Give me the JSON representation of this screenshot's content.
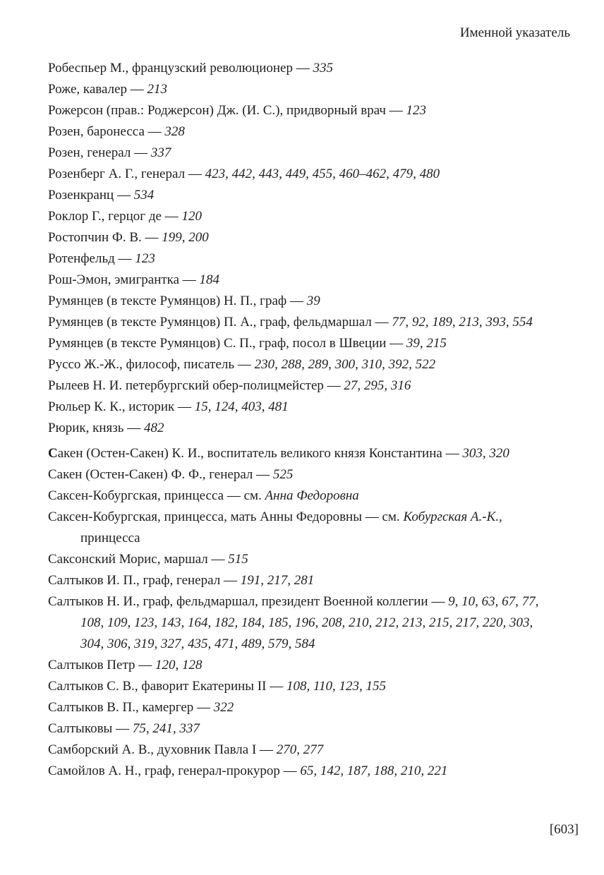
{
  "page": {
    "header": "Именной указатель",
    "footer": "[603]",
    "text_color": "#1f1f1f",
    "background_color": "#ffffff"
  },
  "index": {
    "entries": [
      {
        "runs": [
          {
            "t": "Робеспьер М., французский революционер — ",
            "s": "r"
          },
          {
            "t": "335",
            "s": "i"
          }
        ]
      },
      {
        "runs": [
          {
            "t": "Роже, кавалер — ",
            "s": "r"
          },
          {
            "t": "213",
            "s": "i"
          }
        ]
      },
      {
        "runs": [
          {
            "t": "Рожерсон (прав.: Роджерсон) Дж. (И. С.), придворный врач — ",
            "s": "r"
          },
          {
            "t": "123",
            "s": "i"
          }
        ]
      },
      {
        "runs": [
          {
            "t": "Розен, баронесса — ",
            "s": "r"
          },
          {
            "t": "328",
            "s": "i"
          }
        ]
      },
      {
        "runs": [
          {
            "t": "Розен, генерал — ",
            "s": "r"
          },
          {
            "t": "337",
            "s": "i"
          }
        ]
      },
      {
        "runs": [
          {
            "t": "Розенберг А. Г., генерал — ",
            "s": "r"
          },
          {
            "t": "423, 442, 443, 449, 455, 460–462, 479, 480",
            "s": "i"
          }
        ]
      },
      {
        "runs": [
          {
            "t": "Розенкранц — ",
            "s": "r"
          },
          {
            "t": "534",
            "s": "i"
          }
        ]
      },
      {
        "runs": [
          {
            "t": "Роклор Г., герцог де — ",
            "s": "r"
          },
          {
            "t": "120",
            "s": "i"
          }
        ]
      },
      {
        "runs": [
          {
            "t": "Ростопчин Ф. В. — ",
            "s": "r"
          },
          {
            "t": "199, 200",
            "s": "i"
          }
        ]
      },
      {
        "runs": [
          {
            "t": "Ротенфельд — ",
            "s": "r"
          },
          {
            "t": "123",
            "s": "i"
          }
        ]
      },
      {
        "runs": [
          {
            "t": "Рош-Эмон, эмигрантка — ",
            "s": "r"
          },
          {
            "t": "184",
            "s": "i"
          }
        ]
      },
      {
        "runs": [
          {
            "t": "Румянцев (в тексте Румянцов) Н. П., граф — ",
            "s": "r"
          },
          {
            "t": "39",
            "s": "i"
          }
        ]
      },
      {
        "runs": [
          {
            "t": "Румянцев (в тексте Румянцов) П. А., граф, фельдмаршал — ",
            "s": "r"
          },
          {
            "t": "77, 92, 189, 213, 393, 554",
            "s": "i"
          }
        ]
      },
      {
        "runs": [
          {
            "t": "Румянцев (в тексте Румянцов) С. П., граф, посол в Швеции — ",
            "s": "r"
          },
          {
            "t": "39, 215",
            "s": "i"
          }
        ]
      },
      {
        "runs": [
          {
            "t": "Руссо Ж.-Ж., философ, писатель — ",
            "s": "r"
          },
          {
            "t": "230, 288, 289, 300, 310, 392, 522",
            "s": "i"
          }
        ]
      },
      {
        "runs": [
          {
            "t": "Рылеев Н. И. петербургский обер-полицмейстер — ",
            "s": "r"
          },
          {
            "t": "27, 295, 316",
            "s": "i"
          }
        ]
      },
      {
        "runs": [
          {
            "t": "Рюльер К. К., историк — ",
            "s": "r"
          },
          {
            "t": "15, 124, 403, 481",
            "s": "i"
          }
        ]
      },
      {
        "runs": [
          {
            "t": "Рюрик, князь — ",
            "s": "r"
          },
          {
            "t": "482",
            "s": "i"
          }
        ]
      },
      {
        "section_start": true,
        "runs": [
          {
            "t": "С",
            "s": "b"
          },
          {
            "t": "акен (Остен-Сакен) К. И., воспитатель великого князя Константина — ",
            "s": "r"
          },
          {
            "t": "303, 320",
            "s": "i"
          }
        ]
      },
      {
        "runs": [
          {
            "t": "Сакен (Остен-Сакен) Ф. Ф., генерал — ",
            "s": "r"
          },
          {
            "t": "525",
            "s": "i"
          }
        ]
      },
      {
        "runs": [
          {
            "t": "Саксен-Кобургская, принцесса — см. ",
            "s": "r"
          },
          {
            "t": "Анна Федоровна",
            "s": "i"
          }
        ]
      },
      {
        "runs": [
          {
            "t": "Саксен-Кобургская, принцесса, мать Анны Федоровны — см. ",
            "s": "r"
          },
          {
            "t": "Кобургская А.-К.,",
            "s": "i"
          },
          {
            "t": " принцесса",
            "s": "r"
          }
        ]
      },
      {
        "runs": [
          {
            "t": "Саксонский Морис, маршал — ",
            "s": "r"
          },
          {
            "t": "515",
            "s": "i"
          }
        ]
      },
      {
        "runs": [
          {
            "t": "Салтыков И. П., граф, генерал — ",
            "s": "r"
          },
          {
            "t": "191, 217, 281",
            "s": "i"
          }
        ]
      },
      {
        "runs": [
          {
            "t": "Салтыков Н. И., граф, фельдмаршал, президент Военной коллегии — ",
            "s": "r"
          },
          {
            "t": "9, 10, 63, 67, 77, 108, 109, 123, 143, 164, 182, 184, 185, 196, 208, 210, 212, 213, 215, 217, 220, 303, 304, 306, 319, 327, 435, 471, 489, 579, 584",
            "s": "i"
          }
        ]
      },
      {
        "runs": [
          {
            "t": "Салтыков Петр — ",
            "s": "r"
          },
          {
            "t": "120, 128",
            "s": "i"
          }
        ]
      },
      {
        "runs": [
          {
            "t": "Салтыков С. В., фаворит Екатерины II — ",
            "s": "r"
          },
          {
            "t": "108, 110, 123, 155",
            "s": "i"
          }
        ]
      },
      {
        "runs": [
          {
            "t": "Салтыков В. П., камергер — ",
            "s": "r"
          },
          {
            "t": "322",
            "s": "i"
          }
        ]
      },
      {
        "runs": [
          {
            "t": "Салтыковы — ",
            "s": "r"
          },
          {
            "t": "75, 241, 337",
            "s": "i"
          }
        ]
      },
      {
        "runs": [
          {
            "t": "Самборский А. В., духовник Павла I — ",
            "s": "r"
          },
          {
            "t": "270, 277",
            "s": "i"
          }
        ]
      },
      {
        "runs": [
          {
            "t": "Самойлов А. Н., граф, генерал-прокурор — ",
            "s": "r"
          },
          {
            "t": "65, 142, 187, 188, 210, 221",
            "s": "i"
          }
        ]
      }
    ]
  }
}
